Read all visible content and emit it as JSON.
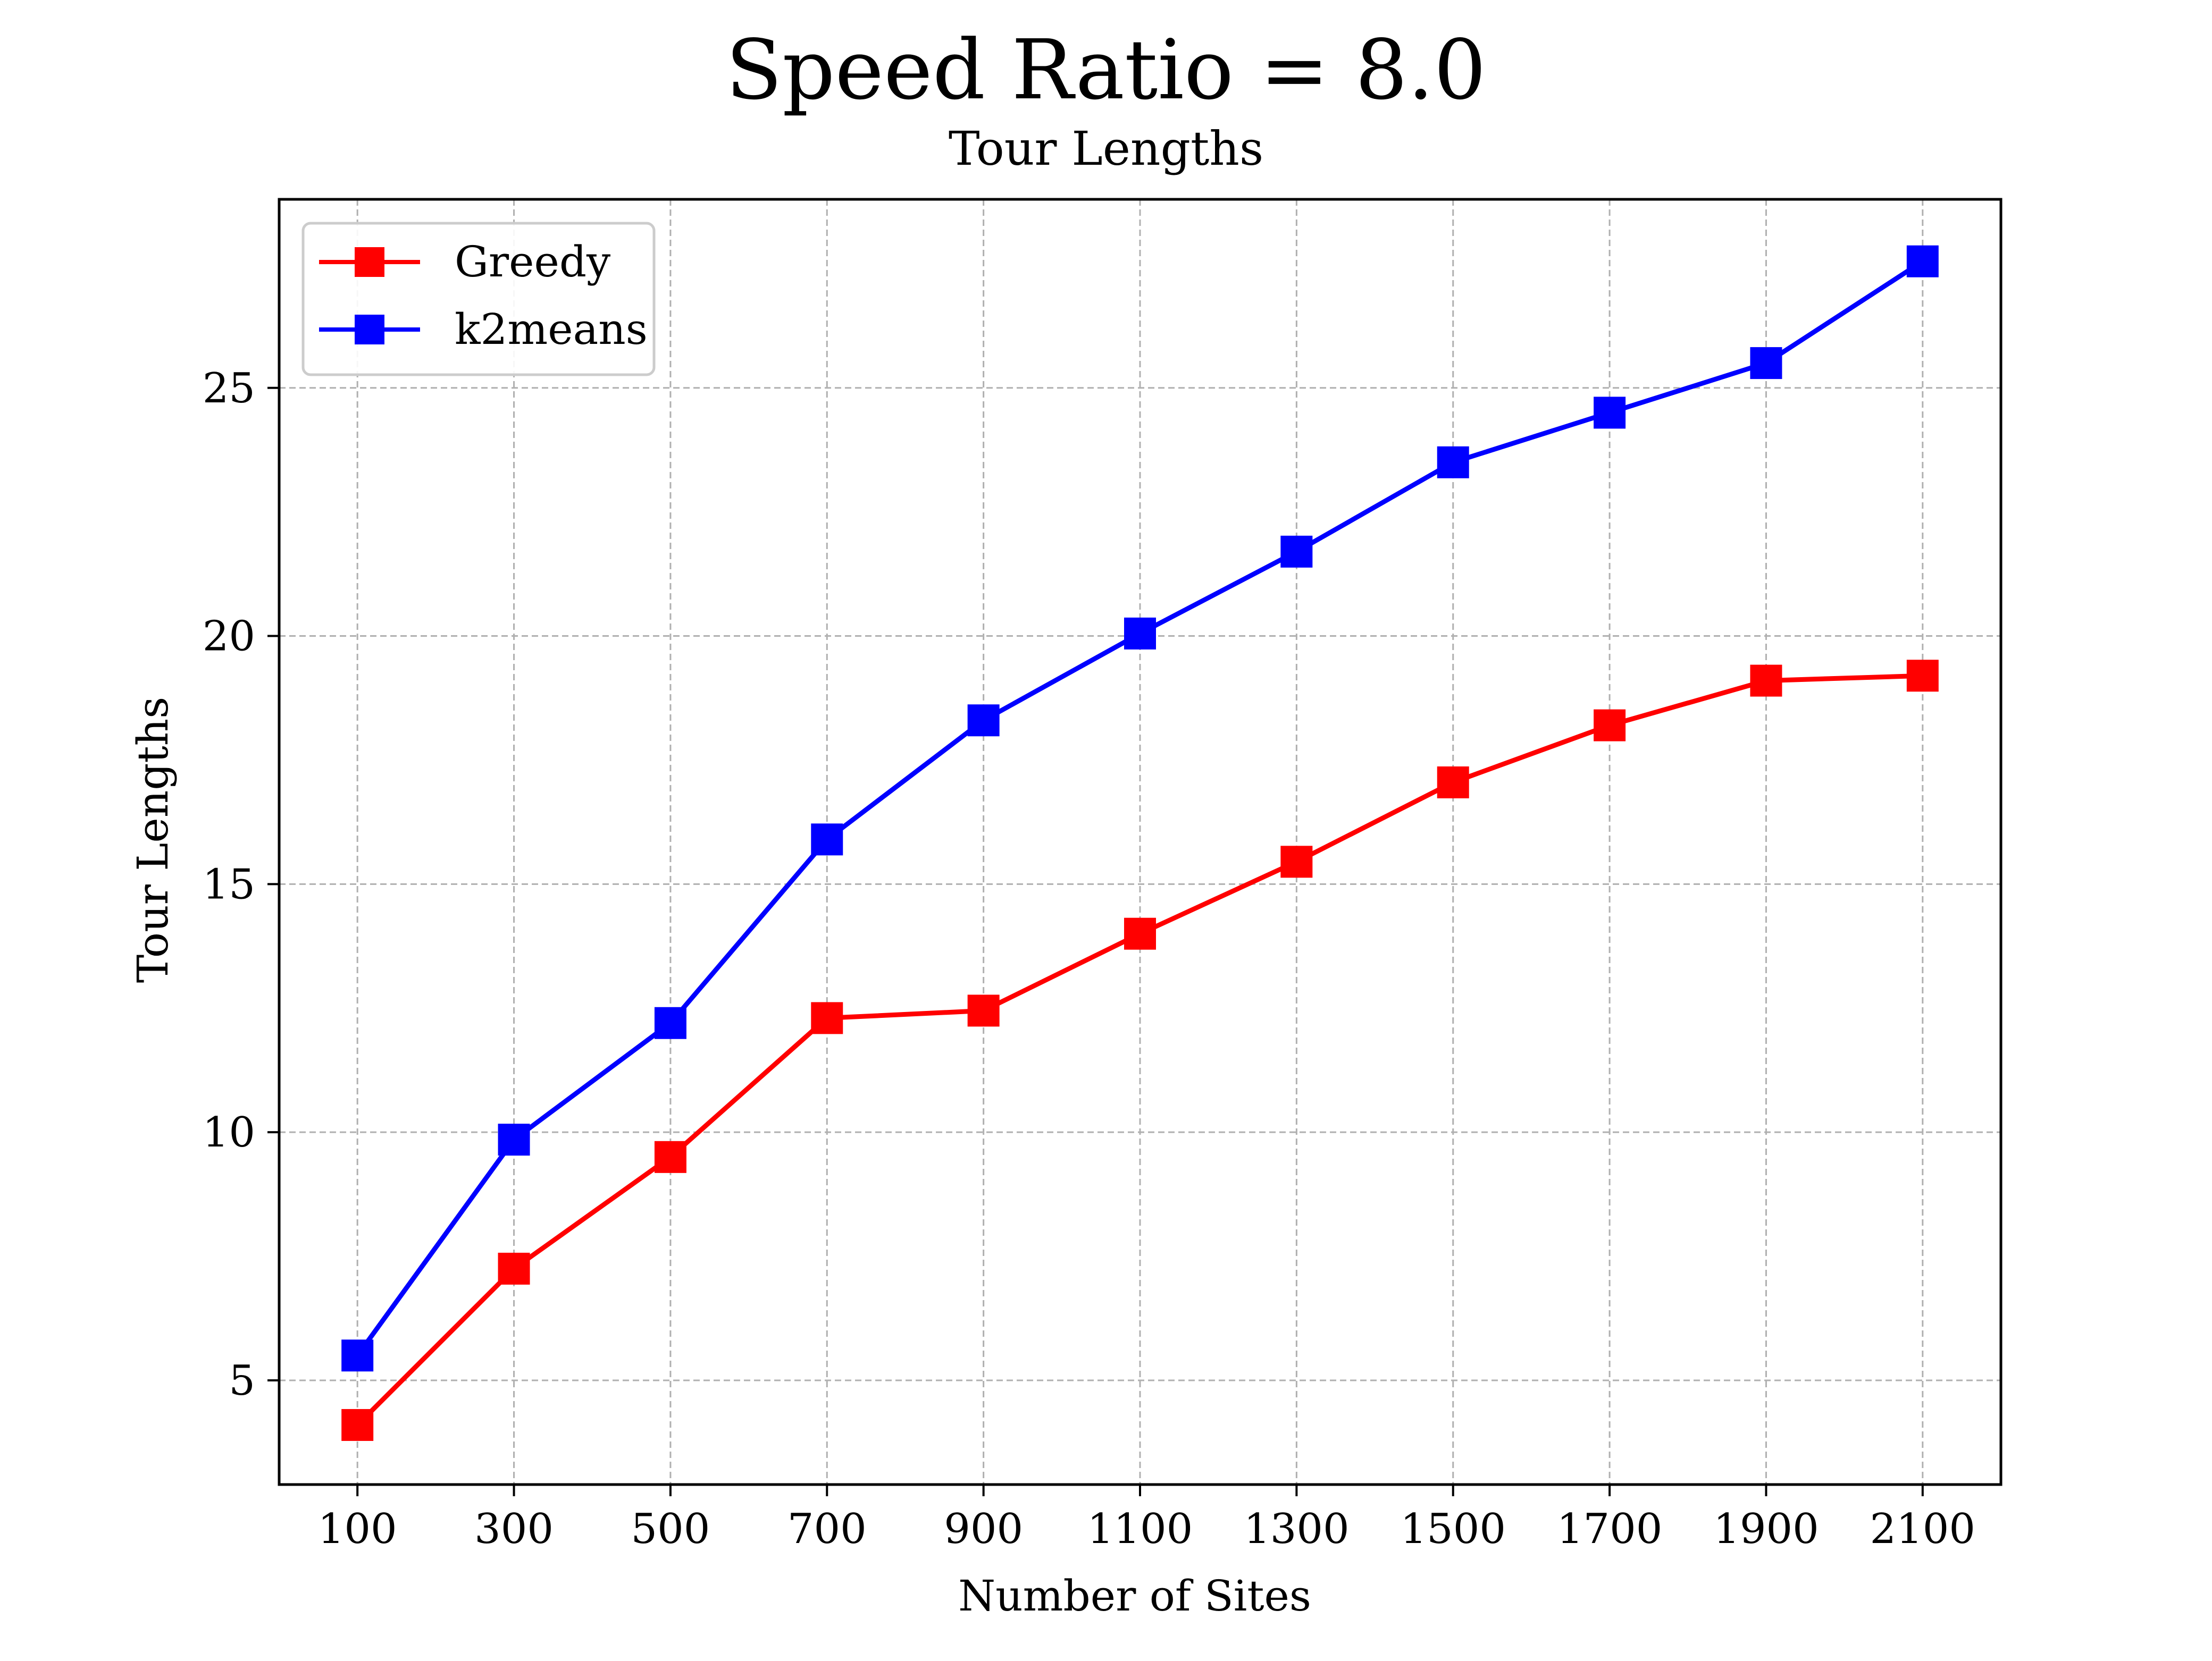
{
  "chart_data": {
    "type": "line",
    "title": "Speed Ratio = 8.0",
    "subtitle": "Tour Lengths",
    "xlabel": "Number of Sites",
    "ylabel": "Tour Lengths",
    "x": [
      100,
      300,
      500,
      700,
      900,
      1100,
      1300,
      1500,
      1700,
      1900,
      2100
    ],
    "x_tick_labels": [
      "100",
      "300",
      "500",
      "700",
      "900",
      "1100",
      "1300",
      "1500",
      "1700",
      "1900",
      "2100"
    ],
    "y_ticks": [
      5,
      10,
      15,
      20,
      25
    ],
    "y_tick_labels": [
      "5",
      "10",
      "15",
      "20",
      "25"
    ],
    "xlim": [
      0,
      2200
    ],
    "ylim": [
      2.9,
      28.8
    ],
    "grid": true,
    "legend_position": "top-left",
    "series": [
      {
        "name": "Greedy",
        "color": "#ff0000",
        "marker": "square",
        "values": [
          4.1,
          7.25,
          9.5,
          12.3,
          12.45,
          14.0,
          15.45,
          17.05,
          18.2,
          19.1,
          19.2
        ]
      },
      {
        "name": "k2means",
        "color": "#0000ff",
        "marker": "square",
        "values": [
          5.5,
          9.85,
          12.2,
          15.9,
          18.3,
          20.05,
          21.7,
          23.5,
          24.5,
          25.5,
          27.55
        ]
      }
    ]
  }
}
